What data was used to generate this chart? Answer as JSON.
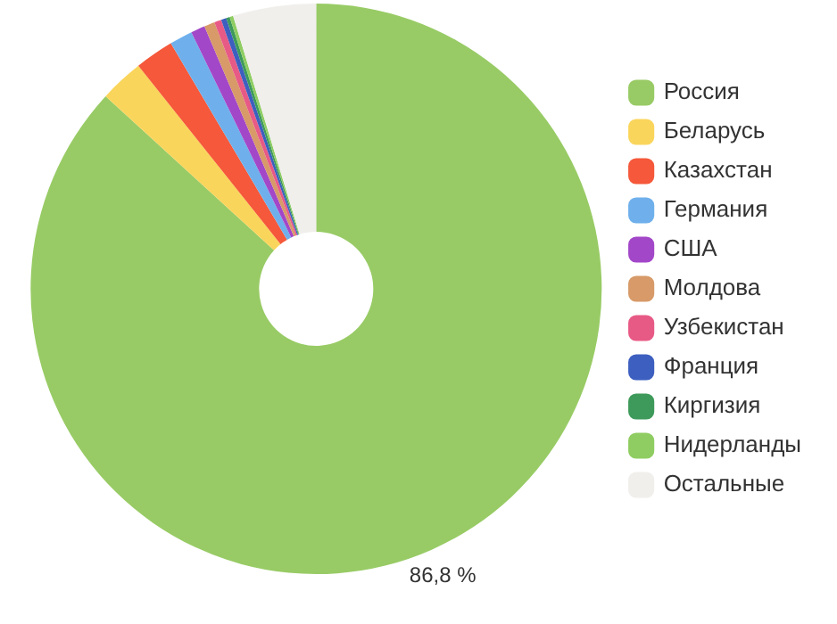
{
  "chart_data": {
    "type": "donut",
    "categories": [
      "Россия",
      "Беларусь",
      "Казахстан",
      "Германия",
      "США",
      "Молдова",
      "Узбекистан",
      "Франция",
      "Киргизия",
      "Нидерланды",
      "Остальные"
    ],
    "values": [
      86.8,
      2.5,
      2.2,
      1.3,
      0.8,
      0.6,
      0.4,
      0.3,
      0.2,
      0.2,
      4.7
    ],
    "colors": [
      "#98cb65",
      "#fad55c",
      "#f5583a",
      "#6fb0ec",
      "#a347c9",
      "#d79a68",
      "#e85a86",
      "#3d5fbf",
      "#3e9a5a",
      "#8fcd62",
      "#f0efec"
    ],
    "value_labels": [
      "86,8 %",
      null,
      null,
      null,
      null,
      null,
      null,
      null,
      null,
      null,
      null
    ],
    "legend": "right"
  }
}
